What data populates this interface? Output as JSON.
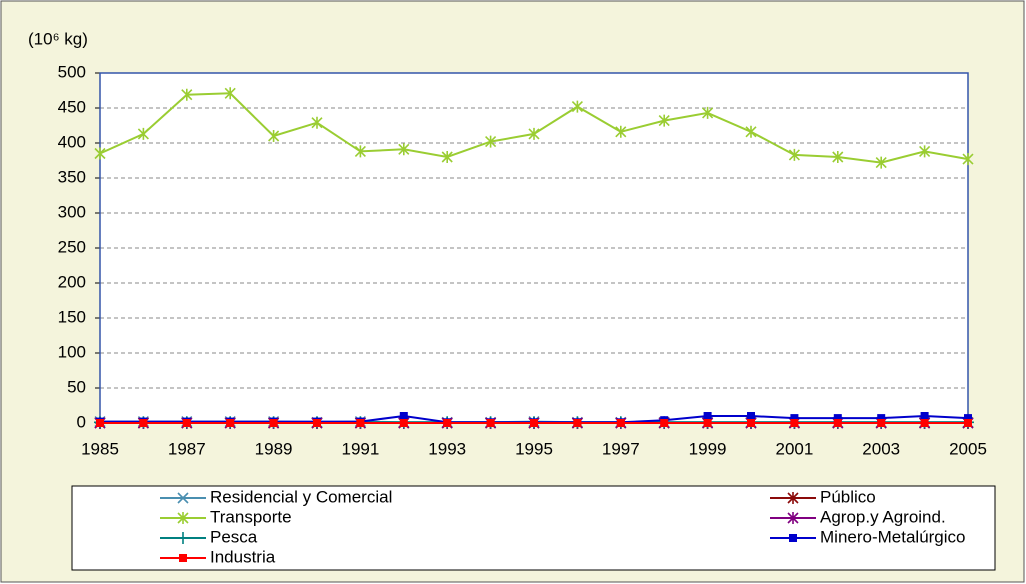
{
  "chart_data": {
    "type": "line",
    "y_label": "(10⁶ kg)",
    "x": [
      1985,
      1986,
      1987,
      1988,
      1989,
      1990,
      1991,
      1992,
      1993,
      1994,
      1995,
      1996,
      1997,
      1998,
      1999,
      2000,
      2001,
      2002,
      2003,
      2004,
      2005
    ],
    "xlim": [
      1985,
      2005
    ],
    "xticks": [
      1985,
      1987,
      1989,
      1991,
      1993,
      1995,
      1997,
      1999,
      2001,
      2003,
      2005
    ],
    "ylim": [
      0,
      500
    ],
    "yticks": [
      0,
      50,
      100,
      150,
      200,
      250,
      300,
      350,
      400,
      450,
      500
    ],
    "grid": true,
    "legend": "bottom",
    "series": [
      {
        "name": "Residencial y Comercial",
        "color": "#4a8fb0",
        "marker": "x",
        "values": [
          2,
          2,
          2,
          2,
          2,
          1,
          2,
          1,
          1,
          1,
          2,
          1,
          1,
          1,
          1,
          1,
          1,
          1,
          1,
          1,
          1
        ]
      },
      {
        "name": "Público",
        "color": "#8b0a0a",
        "marker": "star",
        "values": [
          0,
          0,
          0,
          0,
          0,
          0,
          0,
          0,
          0,
          0,
          0,
          0,
          0,
          0,
          0,
          0,
          0,
          0,
          0,
          0,
          0
        ]
      },
      {
        "name": "Transporte",
        "color": "#9acd32",
        "marker": "star",
        "values": [
          385,
          413,
          469,
          471,
          410,
          429,
          388,
          391,
          380,
          402,
          413,
          452,
          416,
          432,
          443,
          416,
          383,
          380,
          372,
          388,
          377
        ]
      },
      {
        "name": "Agrop.y Agroind.",
        "color": "#800080",
        "marker": "star",
        "values": [
          0,
          0,
          0,
          0,
          0,
          0,
          0,
          0,
          0,
          0,
          0,
          0,
          0,
          0,
          0,
          0,
          0,
          0,
          0,
          0,
          0
        ]
      },
      {
        "name": "Pesca",
        "color": "#008080",
        "marker": "plus",
        "values": [
          1,
          1,
          1,
          1,
          1,
          1,
          1,
          1,
          1,
          1,
          1,
          1,
          1,
          1,
          1,
          1,
          1,
          1,
          1,
          1,
          1
        ]
      },
      {
        "name": "Minero-Metalúrgico",
        "color": "#0000cc",
        "marker": "square",
        "values": [
          2,
          2,
          2,
          2,
          2,
          2,
          2,
          10,
          1,
          1,
          1,
          1,
          1,
          4,
          10,
          10,
          7,
          7,
          7,
          10,
          7
        ]
      },
      {
        "name": "Industria",
        "color": "#ff0000",
        "marker": "square",
        "values": [
          0,
          0,
          0,
          0,
          0,
          0,
          0,
          0,
          0,
          0,
          0,
          0,
          0,
          0,
          0,
          0,
          0,
          0,
          0,
          0,
          0
        ]
      }
    ]
  }
}
